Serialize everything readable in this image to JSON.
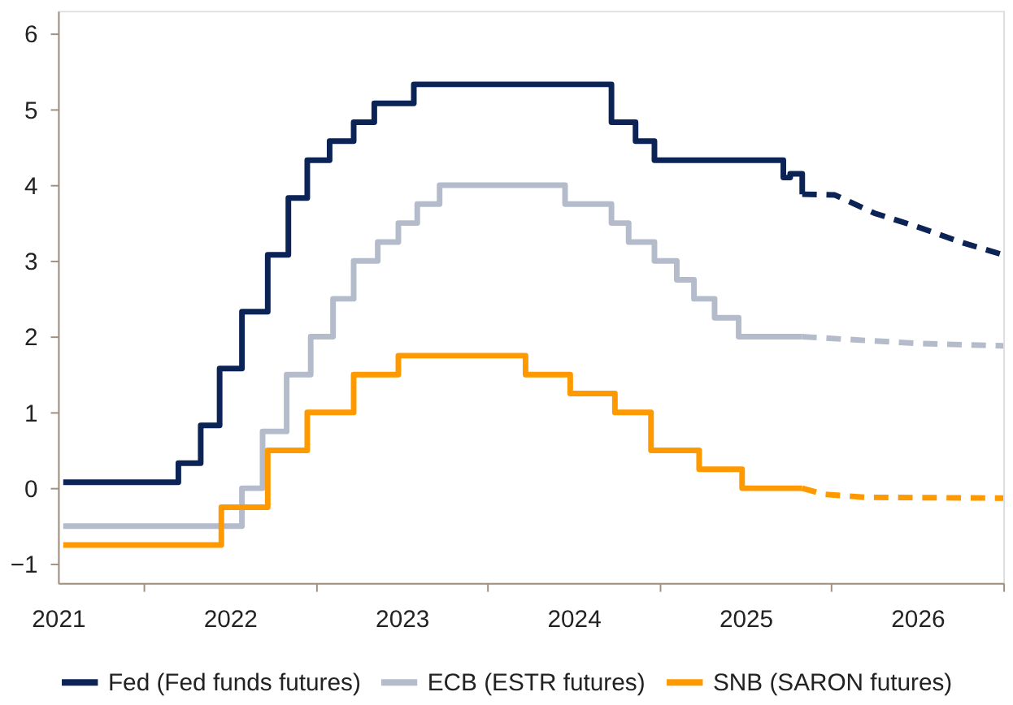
{
  "chart_data": {
    "type": "step",
    "xlim": [
      2021.5,
      2027.0
    ],
    "ylim": [
      -1.25,
      6.3
    ],
    "yticks": [
      -1,
      0,
      1,
      2,
      3,
      4,
      5,
      6
    ],
    "xticks": [
      {
        "value": 2021.5,
        "label": "2021"
      },
      {
        "value": 2022,
        "label": null
      },
      {
        "value": 2022.5,
        "label": "2022"
      },
      {
        "value": 2023,
        "label": null
      },
      {
        "value": 2023.5,
        "label": "2023"
      },
      {
        "value": 2024,
        "label": null
      },
      {
        "value": 2024.5,
        "label": "2024"
      },
      {
        "value": 2025,
        "label": null
      },
      {
        "value": 2025.5,
        "label": "2025"
      },
      {
        "value": 2026,
        "label": null
      },
      {
        "value": 2026.5,
        "label": "2026"
      },
      {
        "value": 2027,
        "label": null
      }
    ],
    "grid": false,
    "legend": "bottom",
    "line_style": "solid",
    "series": [
      {
        "name": "Fed (Fed funds futures)",
        "color": "#0c2356",
        "x": [
          2021.53,
          2022.2,
          2022.33,
          2022.44,
          2022.57,
          2022.72,
          2022.84,
          2022.95,
          2023.08,
          2023.22,
          2023.34,
          2023.57,
          2024.72,
          2024.86,
          2024.97,
          2025.72,
          2025.76,
          2025.83
        ],
        "values": [
          0.08,
          0.33,
          0.83,
          1.58,
          2.33,
          3.08,
          3.83,
          4.33,
          4.58,
          4.83,
          5.08,
          5.33,
          4.83,
          4.58,
          4.33,
          4.1,
          4.15,
          3.88
        ]
      },
      {
        "name": "ECB (ESTR futures)",
        "color": "#b4bccb",
        "x": [
          2021.53,
          2022.57,
          2022.69,
          2022.83,
          2022.97,
          2023.1,
          2023.22,
          2023.36,
          2023.48,
          2023.59,
          2023.72,
          2024.45,
          2024.72,
          2024.82,
          2024.97,
          2025.1,
          2025.2,
          2025.32,
          2025.46,
          2025.83
        ],
        "values": [
          -0.5,
          0.0,
          0.75,
          1.5,
          2.0,
          2.5,
          3.0,
          3.25,
          3.5,
          3.75,
          4.0,
          3.75,
          3.5,
          3.25,
          3.0,
          2.75,
          2.5,
          2.25,
          2.0,
          2.0
        ]
      },
      {
        "name": "SNB (SARON futures)",
        "color": "#ff9900",
        "x": [
          2021.53,
          2022.45,
          2022.72,
          2022.95,
          2023.22,
          2023.48,
          2024.22,
          2024.48,
          2024.74,
          2024.95,
          2025.23,
          2025.48,
          2025.83
        ],
        "values": [
          -0.75,
          -0.25,
          0.5,
          1.0,
          1.5,
          1.75,
          1.5,
          1.25,
          1.0,
          0.5,
          0.25,
          0.0,
          0.0
        ]
      },
      {
        "type": "line",
        "line_style": "dashed",
        "color": "#0c2356",
        "x": [
          2025.83,
          2026.02,
          2026.25,
          2026.5,
          2026.75,
          2027.0
        ],
        "values": [
          3.88,
          3.87,
          3.63,
          3.45,
          3.25,
          3.08
        ]
      },
      {
        "type": "line",
        "line_style": "dashed",
        "color": "#b4bccb",
        "x": [
          2025.83,
          2026.2,
          2026.51,
          2027.0
        ],
        "values": [
          2.0,
          1.95,
          1.91,
          1.88
        ]
      },
      {
        "type": "line",
        "line_style": "dashed",
        "color": "#ff9900",
        "x": [
          2025.83,
          2025.96,
          2026.2,
          2027.0
        ],
        "values": [
          0.0,
          -0.08,
          -0.12,
          -0.13
        ]
      }
    ]
  }
}
